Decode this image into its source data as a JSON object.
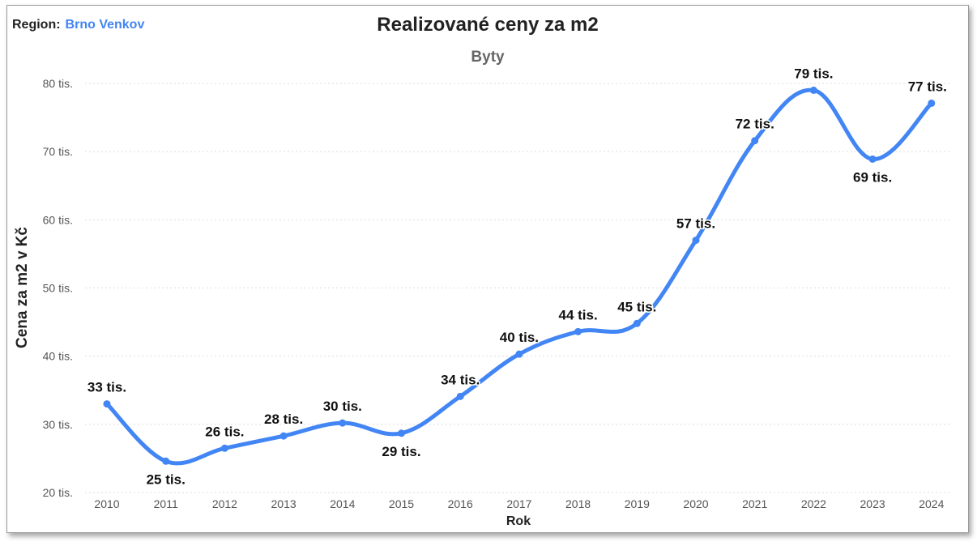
{
  "region": {
    "label": "Region:",
    "value": "Brno Venkov"
  },
  "chart_data": {
    "type": "line",
    "title": "Realizované ceny za m2",
    "subtitle": "Byty",
    "xlabel": "Rok",
    "ylabel": "Cena za m2 v Kč",
    "ylim": [
      20000,
      80000
    ],
    "yticks": [
      20000,
      30000,
      40000,
      50000,
      60000,
      70000,
      80000
    ],
    "ytick_labels": [
      "20 tis.",
      "30 tis.",
      "40 tis.",
      "50 tis.",
      "60 tis.",
      "70 tis.",
      "80 tis."
    ],
    "categories": [
      "2010",
      "2011",
      "2012",
      "2013",
      "2014",
      "2015",
      "2016",
      "2017",
      "2018",
      "2019",
      "2020",
      "2021",
      "2022",
      "2023",
      "2024"
    ],
    "series": [
      {
        "values": [
          33000,
          24600,
          26500,
          28300,
          30200,
          28700,
          34100,
          40300,
          43600,
          44800,
          57000,
          71600,
          79000,
          68900,
          77100
        ],
        "labels": [
          "33 tis.",
          "25 tis.",
          "26 tis.",
          "28 tis.",
          "30 tis.",
          "29 tis.",
          "34 tis.",
          "40 tis.",
          "44 tis.",
          "45 tis.",
          "57 tis.",
          "72 tis.",
          "79 tis.",
          "69 tis.",
          "77 tis."
        ],
        "color": "#4285f4"
      }
    ],
    "grid": true,
    "gridline_color": "#dddddd"
  }
}
